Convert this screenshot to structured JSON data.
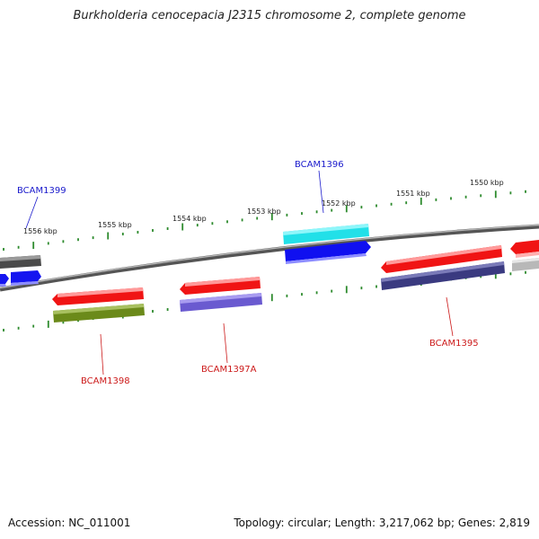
{
  "title": "Burkholderia cenocepacia J2315 chromosome 2, complete genome",
  "footer": {
    "accession": "Accession: NC_011001",
    "topology": "Topology: circular; Length: 3,217,062 bp; Genes: 2,819"
  },
  "colors": {
    "backbone": "#6e6e6e",
    "ticks": "#2e8b2e",
    "label_plus": "#1a1acc",
    "label_minus": "#cc1a1a"
  },
  "scale": {
    "unit": "kbp",
    "ticks": [
      {
        "kbp": 1556,
        "label": "1556 kbp"
      },
      {
        "kbp": 1555,
        "label": "1555 kbp"
      },
      {
        "kbp": 1554,
        "label": "1554 kbp"
      },
      {
        "kbp": 1553,
        "label": "1553 kbp"
      },
      {
        "kbp": 1552,
        "label": "1552 kbp"
      },
      {
        "kbp": 1551,
        "label": "1551 kbp"
      },
      {
        "kbp": 1550,
        "label": "1550 kbp"
      }
    ]
  },
  "gene_labels": [
    {
      "text": "BCAM1399",
      "strand": "plus"
    },
    {
      "text": "BCAM1396",
      "strand": "plus"
    },
    {
      "text": "BCAM1398",
      "strand": "minus"
    },
    {
      "text": "BCAM1397A",
      "strand": "minus"
    },
    {
      "text": "BCAM1395",
      "strand": "minus"
    }
  ],
  "features": [
    {
      "name": "gray-left",
      "color": "#5a5a5a"
    },
    {
      "name": "blue-left-a",
      "color": "#1515f0"
    },
    {
      "name": "blue-left-b",
      "color": "#1515f0"
    },
    {
      "name": "cyan-1396",
      "color": "#22e0e8"
    },
    {
      "name": "blue-1396",
      "color": "#1010f0"
    },
    {
      "name": "red-1398",
      "color": "#f01414"
    },
    {
      "name": "olive-1398",
      "color": "#6b8a1a"
    },
    {
      "name": "red-1397A",
      "color": "#f01414"
    },
    {
      "name": "slate-1397A",
      "color": "#6a5ad0"
    },
    {
      "name": "red-1395",
      "color": "#f01414"
    },
    {
      "name": "navy-1395",
      "color": "#3a3a80"
    },
    {
      "name": "red-right",
      "color": "#f01414"
    },
    {
      "name": "silver-right",
      "color": "#b8b8b8"
    }
  ]
}
